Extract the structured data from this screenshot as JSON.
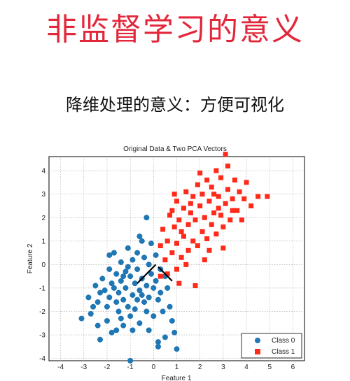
{
  "slide": {
    "title": "非监督学习的意义",
    "subtitle": "降维处理的意义：方便可视化"
  },
  "chart_data": {
    "type": "scatter",
    "title": "Original Data & Two PCA Vectors",
    "xlabel": "Feature 1",
    "ylabel": "Feature 2",
    "xlim": [
      -4.5,
      6.5
    ],
    "ylim": [
      -4.1,
      4.6
    ],
    "xticks": [
      "-4",
      "-3",
      "-2",
      "-1",
      "0",
      "1",
      "2",
      "3",
      "4",
      "5",
      "6"
    ],
    "yticks": [
      "4",
      "3",
      "2",
      "1",
      "0",
      "-1",
      "-2",
      "-3",
      "-4"
    ],
    "grid": true,
    "legend_position": "bottom-right",
    "colors": {
      "class0": "#1f77b4",
      "class1": "#ff2a1a",
      "vector": "#000000"
    },
    "series": [
      {
        "name": "Class 0",
        "marker": "circle",
        "points": [
          [
            -3.1,
            -2.3
          ],
          [
            -2.6,
            -1.8
          ],
          [
            -2.7,
            -2.1
          ],
          [
            -2.4,
            -1.6
          ],
          [
            -2.3,
            -1.2
          ],
          [
            -2.2,
            -0.6
          ],
          [
            -2.1,
            -1.1
          ],
          [
            -2.0,
            -2.4
          ],
          [
            -2.0,
            -1.8
          ],
          [
            -1.9,
            -0.2
          ],
          [
            -1.9,
            -1.4
          ],
          [
            -1.8,
            -0.8
          ],
          [
            -1.8,
            -2.9
          ],
          [
            -1.7,
            -1.0
          ],
          [
            -1.7,
            0.5
          ],
          [
            -1.6,
            -1.6
          ],
          [
            -1.6,
            -0.4
          ],
          [
            -1.5,
            -2.0
          ],
          [
            -1.5,
            -1.2
          ],
          [
            -1.4,
            0.1
          ],
          [
            -1.4,
            -0.7
          ],
          [
            -1.3,
            -2.6
          ],
          [
            -1.3,
            -1.5
          ],
          [
            -1.2,
            -0.3
          ],
          [
            -1.2,
            -1.0
          ],
          [
            -1.1,
            0.7
          ],
          [
            -1.1,
            -1.8
          ],
          [
            -1.0,
            -0.5
          ],
          [
            -1.0,
            -2.2
          ],
          [
            -0.9,
            0.2
          ],
          [
            -0.9,
            -1.3
          ],
          [
            -0.8,
            -0.8
          ],
          [
            -0.8,
            -1.9
          ],
          [
            -0.7,
            0.5
          ],
          [
            -0.7,
            -0.2
          ],
          [
            -0.6,
            -1.1
          ],
          [
            -0.6,
            -2.5
          ],
          [
            -0.5,
            1.0
          ],
          [
            -0.5,
            -0.6
          ],
          [
            -0.4,
            -1.6
          ],
          [
            -0.4,
            0.3
          ],
          [
            -0.3,
            -0.9
          ],
          [
            -0.3,
            -2.0
          ],
          [
            -0.2,
            0.0
          ],
          [
            -0.2,
            -1.4
          ],
          [
            -0.1,
            0.9
          ],
          [
            -0.1,
            -0.4
          ],
          [
            0.0,
            -1.0
          ],
          [
            0.0,
            -2.2
          ],
          [
            0.1,
            0.4
          ],
          [
            0.1,
            -0.7
          ],
          [
            0.2,
            -1.5
          ],
          [
            0.2,
            -3.5
          ],
          [
            0.3,
            -0.2
          ],
          [
            0.3,
            -1.2
          ],
          [
            0.4,
            -2.0
          ],
          [
            0.5,
            -0.5
          ],
          [
            0.5,
            -3.1
          ],
          [
            0.6,
            -1.0
          ],
          [
            0.7,
            -1.8
          ],
          [
            0.9,
            -2.9
          ],
          [
            1.0,
            -3.6
          ],
          [
            -1.0,
            -4.1
          ],
          [
            -2.3,
            -3.2
          ],
          [
            -0.3,
            2.0
          ],
          [
            -0.6,
            1.2
          ],
          [
            0.2,
            -3.3
          ],
          [
            -1.9,
            0.4
          ],
          [
            -2.5,
            -0.9
          ],
          [
            -1.4,
            -2.3
          ],
          [
            -0.9,
            -2.8
          ],
          [
            0.8,
            -2.4
          ],
          [
            -2.8,
            -1.4
          ],
          [
            -1.6,
            -2.8
          ],
          [
            -0.2,
            -2.8
          ],
          [
            -2.4,
            -2.6
          ],
          [
            -1.1,
            -0.1
          ],
          [
            -0.5,
            -1.3
          ],
          [
            -1.3,
            -0.5
          ],
          [
            -0.7,
            -1.5
          ]
        ]
      },
      {
        "name": "Class 1",
        "marker": "square",
        "points": [
          [
            0.3,
            0.8
          ],
          [
            0.4,
            1.5
          ],
          [
            0.5,
            0.2
          ],
          [
            0.6,
            1.0
          ],
          [
            0.7,
            2.1
          ],
          [
            0.8,
            0.5
          ],
          [
            0.9,
            1.6
          ],
          [
            1.0,
            2.7
          ],
          [
            1.0,
            0.9
          ],
          [
            1.1,
            1.9
          ],
          [
            1.2,
            0.3
          ],
          [
            1.3,
            2.4
          ],
          [
            1.3,
            1.2
          ],
          [
            1.4,
            3.1
          ],
          [
            1.5,
            1.7
          ],
          [
            1.5,
            0.6
          ],
          [
            1.6,
            2.2
          ],
          [
            1.7,
            1.0
          ],
          [
            1.7,
            2.9
          ],
          [
            1.8,
            1.9
          ],
          [
            1.9,
            3.4
          ],
          [
            1.9,
            0.8
          ],
          [
            2.0,
            2.5
          ],
          [
            2.1,
            1.4
          ],
          [
            2.1,
            3.0
          ],
          [
            2.2,
            2.0
          ],
          [
            2.3,
            3.6
          ],
          [
            2.3,
            1.1
          ],
          [
            2.4,
            2.7
          ],
          [
            2.5,
            1.7
          ],
          [
            2.5,
            3.3
          ],
          [
            2.6,
            2.2
          ],
          [
            2.7,
            4.0
          ],
          [
            2.7,
            1.3
          ],
          [
            2.8,
            2.9
          ],
          [
            2.9,
            2.1
          ],
          [
            2.9,
            3.7
          ],
          [
            3.0,
            1.6
          ],
          [
            3.1,
            2.6
          ],
          [
            3.2,
            4.2
          ],
          [
            3.2,
            3.2
          ],
          [
            3.3,
            1.9
          ],
          [
            3.4,
            2.8
          ],
          [
            3.5,
            3.6
          ],
          [
            3.6,
            2.3
          ],
          [
            3.7,
            3.1
          ],
          [
            3.8,
            1.9
          ],
          [
            3.9,
            2.8
          ],
          [
            4.0,
            3.5
          ],
          [
            4.2,
            2.5
          ],
          [
            4.5,
            2.9
          ],
          [
            4.9,
            2.9
          ],
          [
            3.1,
            4.7
          ],
          [
            0.3,
            -0.5
          ],
          [
            1.0,
            -0.2
          ],
          [
            1.1,
            -0.8
          ],
          [
            1.8,
            -0.9
          ],
          [
            0.6,
            -0.4
          ],
          [
            1.4,
            0.0
          ],
          [
            2.4,
            0.6
          ],
          [
            0.9,
            3.0
          ],
          [
            2.0,
            3.9
          ],
          [
            3.0,
            0.7
          ],
          [
            2.2,
            0.2
          ],
          [
            1.6,
            2.6
          ],
          [
            2.6,
            3.0
          ],
          [
            3.4,
            2.3
          ],
          [
            0.8,
            2.3
          ],
          [
            1.2,
            1.4
          ],
          [
            2.8,
            2.4
          ]
        ]
      }
    ],
    "vectors": [
      {
        "from": [
          -0.7,
          -0.8
        ],
        "to": [
          0.1,
          0.0
        ]
      },
      {
        "from": [
          0.2,
          -0.1
        ],
        "to": [
          0.8,
          -0.7
        ]
      }
    ]
  }
}
